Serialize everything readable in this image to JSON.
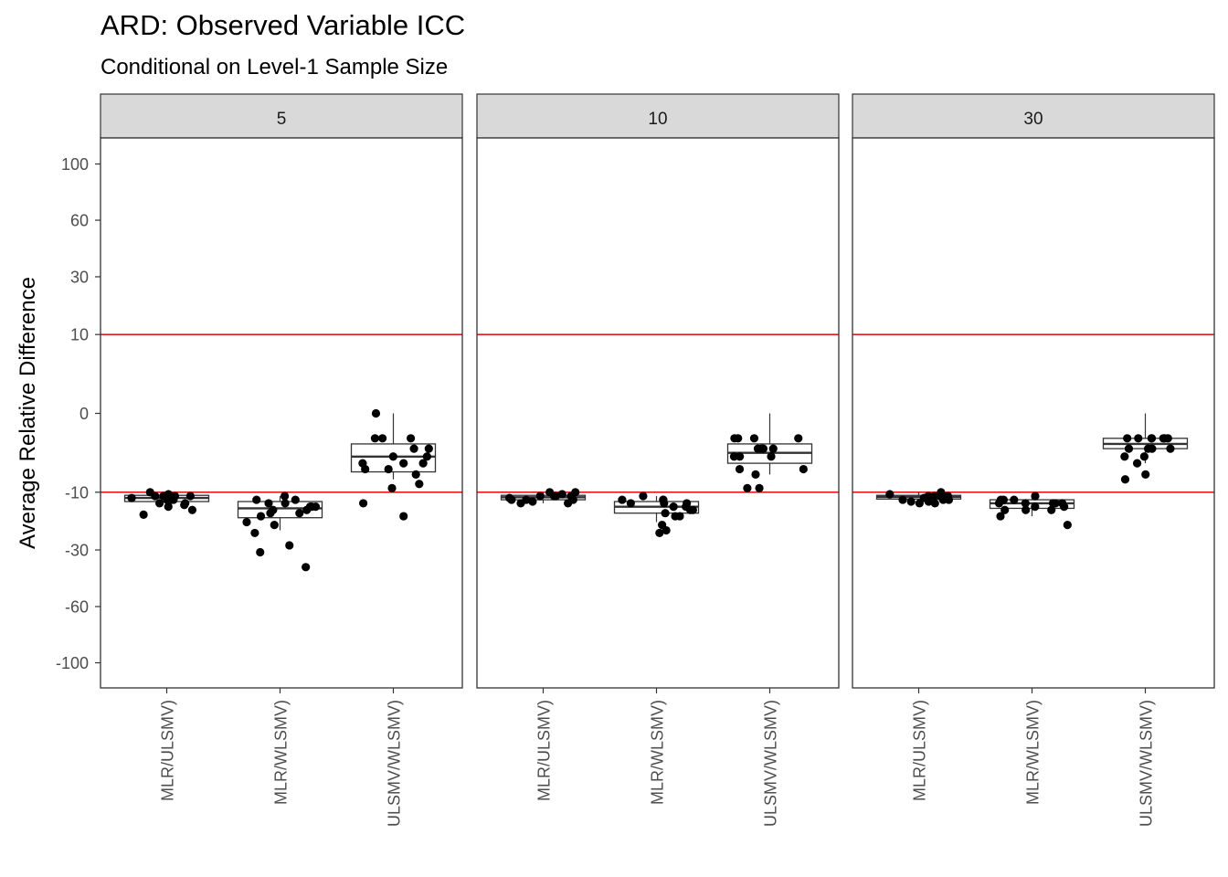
{
  "chart_data": {
    "type": "box",
    "title": "ARD: Observed Variable ICC",
    "subtitle": "Conditional on Level-1 Sample Size",
    "ylabel": "Average Relative Difference",
    "xlabel": "",
    "ylim": [
      -110,
      110
    ],
    "y_scale": "signed square root",
    "y_ticks": [
      100,
      60,
      30,
      10,
      0,
      -10,
      -30,
      -60,
      -100
    ],
    "reference_lines": [
      10,
      -10
    ],
    "reference_color": "#e31a1c",
    "categories": [
      "MLR/ULSMV)",
      "MLR/WLSMV)",
      "ULSMV/WLSMV)"
    ],
    "panels": [
      {
        "label": "5",
        "boxes": [
          {
            "category": "MLR/ULSMV)",
            "q1": -12.5,
            "median": -11.5,
            "q3": -10.8,
            "whisker_low": -14,
            "whisker_high": -10
          },
          {
            "category": "MLR/WLSMV)",
            "q1": -17.5,
            "median": -14.5,
            "q3": -12.5,
            "whisker_low": -22,
            "whisker_high": -11
          },
          {
            "category": "ULSMV/WLSMV)",
            "q1": -5.5,
            "median": -3,
            "q3": -1.5,
            "whisker_low": -7,
            "whisker_high": 0
          }
        ],
        "points": [
          [
            0,
            -16.5
          ],
          [
            0,
            -13.5
          ],
          [
            0,
            -12
          ],
          [
            0,
            -11
          ],
          [
            0,
            -10
          ],
          [
            0,
            -11
          ],
          [
            0,
            -13
          ],
          [
            0,
            -12
          ],
          [
            0,
            -10.5
          ],
          [
            0,
            -14
          ],
          [
            0,
            -11.5
          ],
          [
            0,
            -12
          ],
          [
            0,
            -11
          ],
          [
            0,
            -13
          ],
          [
            0,
            -15
          ],
          [
            0,
            -11
          ],
          [
            1,
            -20
          ],
          [
            1,
            -17
          ],
          [
            1,
            -14
          ],
          [
            1,
            -12
          ],
          [
            1,
            -15
          ],
          [
            1,
            -38
          ],
          [
            1,
            -19
          ],
          [
            1,
            -28
          ],
          [
            1,
            -14
          ],
          [
            1,
            -31
          ],
          [
            1,
            -16
          ],
          [
            1,
            -23
          ],
          [
            1,
            -14
          ],
          [
            1,
            -12
          ],
          [
            1,
            -13
          ],
          [
            1,
            -11
          ],
          [
            1,
            -16
          ],
          [
            1,
            -15
          ],
          [
            1,
            -13
          ],
          [
            2,
            -5
          ],
          [
            2,
            -4
          ],
          [
            2,
            -3
          ],
          [
            2,
            -1
          ],
          [
            2,
            0
          ],
          [
            2,
            -2
          ],
          [
            2,
            -8
          ],
          [
            2,
            -17
          ],
          [
            2,
            -4
          ],
          [
            2,
            -3
          ],
          [
            2,
            -6
          ],
          [
            2,
            -1
          ],
          [
            2,
            -13
          ],
          [
            2,
            -5
          ],
          [
            2,
            -2
          ],
          [
            2,
            -4
          ],
          [
            2,
            -9
          ],
          [
            2,
            -1
          ]
        ]
      },
      {
        "label": "10",
        "boxes": [
          {
            "category": "MLR/ULSMV)",
            "q1": -12,
            "median": -11.3,
            "q3": -10.8,
            "whisker_low": -13,
            "whisker_high": -10
          },
          {
            "category": "MLR/WLSMV)",
            "q1": -16,
            "median": -14,
            "q3": -12.5,
            "whisker_low": -19,
            "whisker_high": -11
          },
          {
            "category": "ULSMV/WLSMV)",
            "q1": -4,
            "median": -2.5,
            "q3": -1.5,
            "whisker_low": -6,
            "whisker_high": 0
          }
        ],
        "points": [
          [
            0,
            -13
          ],
          [
            0,
            -11
          ],
          [
            0,
            -12
          ],
          [
            0,
            -10
          ],
          [
            0,
            -11.5
          ],
          [
            0,
            -12.5
          ],
          [
            0,
            -11
          ],
          [
            0,
            -13
          ],
          [
            0,
            -12
          ],
          [
            0,
            -11
          ],
          [
            0,
            -10.5
          ],
          [
            0,
            -12
          ],
          [
            0,
            -11
          ],
          [
            0,
            -10
          ],
          [
            1,
            -20
          ],
          [
            1,
            -23
          ],
          [
            1,
            -22
          ],
          [
            1,
            -16
          ],
          [
            1,
            -15
          ],
          [
            1,
            -13
          ],
          [
            1,
            -12
          ],
          [
            1,
            -17
          ],
          [
            1,
            -14
          ],
          [
            1,
            -11
          ],
          [
            1,
            -13
          ],
          [
            1,
            -15
          ],
          [
            1,
            -12
          ],
          [
            1,
            -14
          ],
          [
            1,
            -13
          ],
          [
            1,
            -17
          ],
          [
            1,
            -12
          ],
          [
            2,
            -6
          ],
          [
            2,
            -9
          ],
          [
            2,
            -5
          ],
          [
            2,
            -2
          ],
          [
            2,
            -1
          ],
          [
            2,
            -2
          ],
          [
            2,
            -1
          ],
          [
            2,
            -3
          ],
          [
            2,
            -1
          ],
          [
            2,
            -2
          ],
          [
            2,
            -3
          ],
          [
            2,
            -9
          ],
          [
            2,
            -2
          ],
          [
            2,
            -1
          ],
          [
            2,
            -3
          ],
          [
            2,
            -5
          ]
        ]
      },
      {
        "label": "30",
        "boxes": [
          {
            "category": "MLR/ULSMV)",
            "q1": -11.8,
            "median": -11.2,
            "q3": -10.8,
            "whisker_low": -13,
            "whisker_high": -10
          },
          {
            "category": "MLR/WLSMV)",
            "q1": -14.5,
            "median": -13,
            "q3": -12,
            "whisker_low": -17,
            "whisker_high": -11
          },
          {
            "category": "ULSMV/WLSMV)",
            "q1": -2,
            "median": -1.5,
            "q3": -1,
            "whisker_low": -4,
            "whisker_high": 0
          }
        ],
        "points": [
          [
            0,
            -12
          ],
          [
            0,
            -11
          ],
          [
            0,
            -13
          ],
          [
            0,
            -10
          ],
          [
            0,
            -11.5
          ],
          [
            0,
            -12.5
          ],
          [
            0,
            -11
          ],
          [
            0,
            -13
          ],
          [
            0,
            -12
          ],
          [
            0,
            -11
          ],
          [
            0,
            -10.5
          ],
          [
            0,
            -12
          ],
          [
            0,
            -11
          ],
          [
            0,
            -12.5
          ],
          [
            1,
            -13
          ],
          [
            1,
            -12
          ],
          [
            1,
            -15
          ],
          [
            1,
            -17
          ],
          [
            1,
            -13
          ],
          [
            1,
            -12
          ],
          [
            1,
            -14
          ],
          [
            1,
            -11
          ],
          [
            1,
            -15
          ],
          [
            1,
            -13
          ],
          [
            1,
            -14
          ],
          [
            1,
            -12
          ],
          [
            1,
            -13
          ],
          [
            1,
            -15
          ],
          [
            1,
            -20
          ],
          [
            1,
            -13
          ],
          [
            2,
            -2
          ],
          [
            2,
            -1
          ],
          [
            2,
            -4
          ],
          [
            2,
            -6
          ],
          [
            2,
            -3
          ],
          [
            2,
            -1
          ],
          [
            2,
            -7
          ],
          [
            2,
            -2
          ],
          [
            2,
            -1
          ],
          [
            2,
            -3
          ],
          [
            2,
            -1
          ],
          [
            2,
            -2
          ],
          [
            2,
            -1
          ],
          [
            2,
            -1
          ],
          [
            2,
            -2
          ],
          [
            2,
            -1
          ]
        ]
      }
    ]
  }
}
